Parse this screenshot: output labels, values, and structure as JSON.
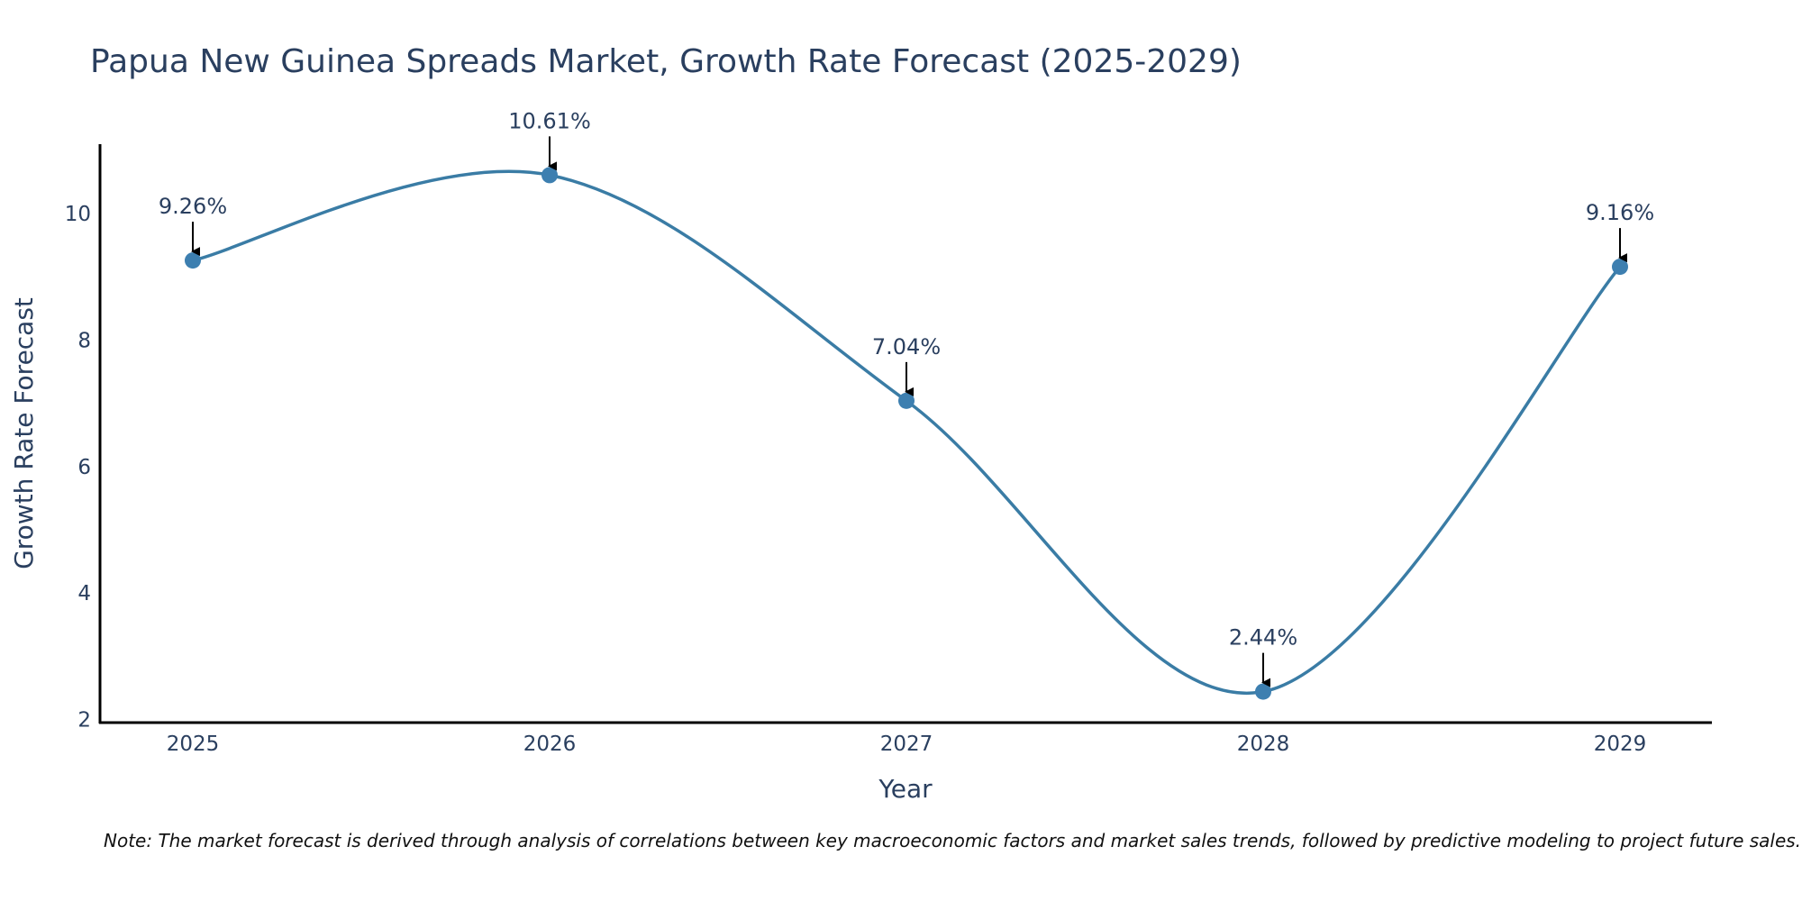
{
  "chart_data": {
    "type": "line",
    "title": "Papua New Guinea Spreads Market, Growth Rate Forecast (2025-2029)",
    "xlabel": "Year",
    "ylabel": "Growth Rate Forecast",
    "categories": [
      "2025",
      "2026",
      "2027",
      "2028",
      "2029"
    ],
    "values": [
      9.26,
      10.61,
      7.04,
      2.44,
      9.16
    ],
    "data_labels": [
      "9.26%",
      "10.61%",
      "7.04%",
      "2.44%",
      "9.16%"
    ],
    "y_ticks": [
      2,
      4,
      6,
      8,
      10
    ],
    "y_tick_labels": [
      "2",
      "4",
      "6",
      "8",
      "10"
    ],
    "ylim": [
      1.95,
      11.1
    ],
    "grid": false,
    "legend": "none",
    "line_color": "#3a7ca5",
    "marker_color": "#3d7fb0",
    "note": "Note: The market forecast is derived through analysis of correlations between key macroeconomic factors and market sales trends, followed by predictive modeling to project future sales."
  }
}
